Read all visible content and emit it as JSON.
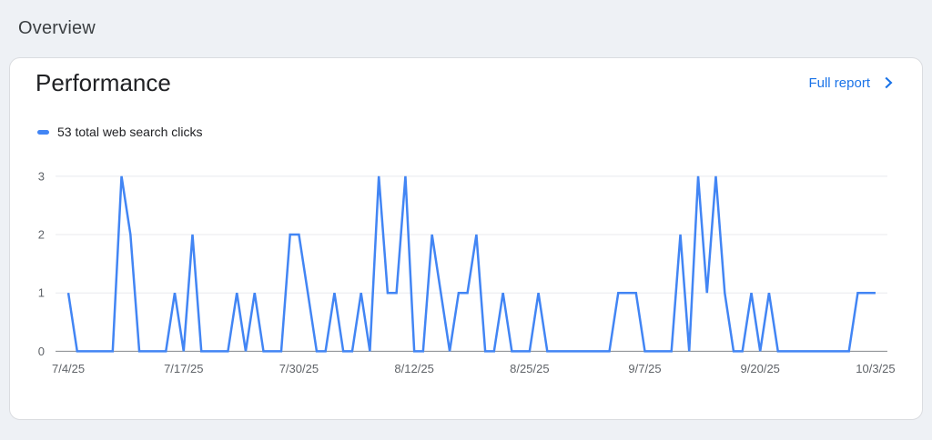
{
  "page": {
    "title": "Overview"
  },
  "card": {
    "title": "Performance",
    "full_report_label": "Full report"
  },
  "colors": {
    "page_bg": "#eef1f5",
    "card_bg": "#ffffff",
    "card_border": "#dadce0",
    "page_title_text": "#3c4043",
    "heading_text": "#202124",
    "link_blue": "#1a73e8",
    "line_blue": "#4285f4",
    "axis_text": "#5f6368",
    "gridline": "#e8eaed",
    "axis_line": "#85888c"
  },
  "chart_data": {
    "type": "line",
    "legend_label": "53 total web search clicks",
    "total_clicks": 53,
    "ylim": [
      0,
      3
    ],
    "y_ticks": [
      0,
      1,
      2,
      3
    ],
    "x_tick_labels": [
      "7/4/25",
      "7/17/25",
      "7/30/25",
      "8/12/25",
      "8/25/25",
      "9/7/25",
      "9/20/25",
      "10/3/25"
    ],
    "x_tick_indices": [
      0,
      13,
      26,
      39,
      52,
      65,
      78,
      91
    ],
    "legend_position": "top-left",
    "grid": true,
    "dates": [
      "7/4/25",
      "7/5/25",
      "7/6/25",
      "7/7/25",
      "7/8/25",
      "7/9/25",
      "7/10/25",
      "7/11/25",
      "7/12/25",
      "7/13/25",
      "7/14/25",
      "7/15/25",
      "7/16/25",
      "7/17/25",
      "7/18/25",
      "7/19/25",
      "7/20/25",
      "7/21/25",
      "7/22/25",
      "7/23/25",
      "7/24/25",
      "7/25/25",
      "7/26/25",
      "7/27/25",
      "7/28/25",
      "7/29/25",
      "7/30/25",
      "7/31/25",
      "8/1/25",
      "8/2/25",
      "8/3/25",
      "8/4/25",
      "8/5/25",
      "8/6/25",
      "8/7/25",
      "8/8/25",
      "8/9/25",
      "8/10/25",
      "8/11/25",
      "8/12/25",
      "8/13/25",
      "8/14/25",
      "8/15/25",
      "8/16/25",
      "8/17/25",
      "8/18/25",
      "8/19/25",
      "8/20/25",
      "8/21/25",
      "8/22/25",
      "8/23/25",
      "8/24/25",
      "8/25/25",
      "8/26/25",
      "8/27/25",
      "8/28/25",
      "8/29/25",
      "8/30/25",
      "8/31/25",
      "9/1/25",
      "9/2/25",
      "9/3/25",
      "9/4/25",
      "9/5/25",
      "9/6/25",
      "9/7/25",
      "9/8/25",
      "9/9/25",
      "9/10/25",
      "9/11/25",
      "9/12/25",
      "9/13/25",
      "9/14/25",
      "9/15/25",
      "9/16/25",
      "9/17/25",
      "9/18/25",
      "9/19/25",
      "9/20/25",
      "9/21/25",
      "9/22/25",
      "9/23/25",
      "9/24/25",
      "9/25/25",
      "9/26/25",
      "9/27/25",
      "9/28/25",
      "9/29/25",
      "9/30/25",
      "10/1/25",
      "10/2/25",
      "10/3/25"
    ],
    "values": [
      1,
      0,
      0,
      0,
      0,
      0,
      3,
      2,
      0,
      0,
      0,
      0,
      1,
      0,
      2,
      0,
      0,
      0,
      0,
      1,
      0,
      1,
      0,
      0,
      0,
      2,
      2,
      1,
      0,
      0,
      1,
      0,
      0,
      1,
      0,
      3,
      1,
      1,
      3,
      0,
      0,
      2,
      1,
      0,
      1,
      1,
      2,
      0,
      0,
      1,
      0,
      0,
      0,
      1,
      0,
      0,
      0,
      0,
      0,
      0,
      0,
      0,
      1,
      1,
      1,
      0,
      0,
      0,
      0,
      2,
      0,
      3,
      1,
      3,
      1,
      0,
      0,
      1,
      0,
      1,
      0,
      0,
      0,
      0,
      0,
      0,
      0,
      0,
      0,
      1,
      1,
      1
    ]
  }
}
